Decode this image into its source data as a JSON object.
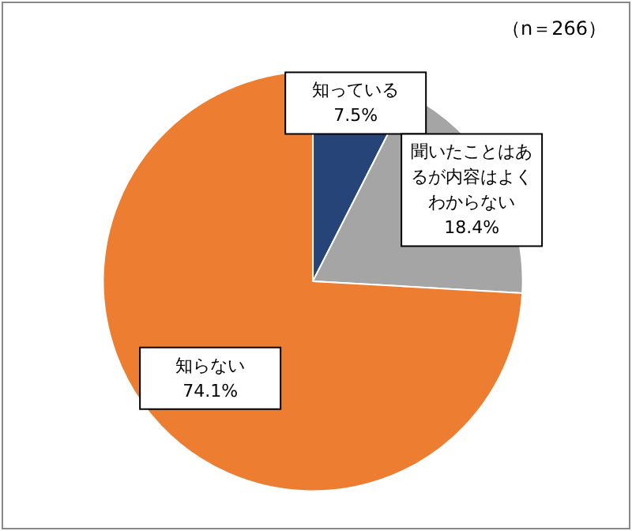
{
  "chart_data": {
    "type": "pie",
    "categories": [
      "知っている",
      "聞いたことはあるが内容はよくわからない",
      "知らない"
    ],
    "values": [
      7.5,
      18.4,
      74.1
    ],
    "colors": [
      "#264478",
      "#a5a5a5",
      "#ed7d31"
    ],
    "value_labels": [
      "7.5%",
      "18.4%",
      "74.1%"
    ],
    "legend": false,
    "annotations": [
      "（n＝266）"
    ]
  }
}
